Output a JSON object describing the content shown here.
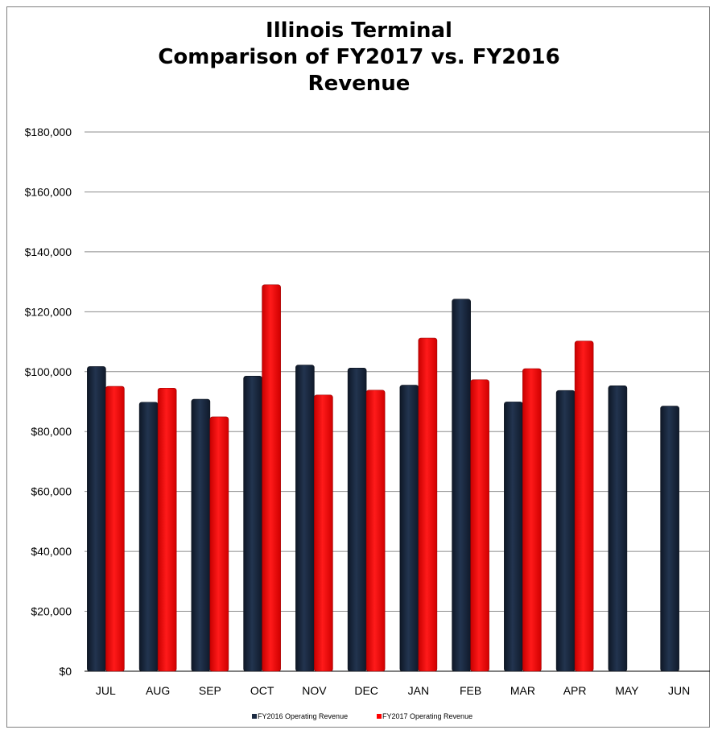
{
  "chart_data": {
    "type": "bar",
    "title_lines": [
      "Illinois Terminal",
      "Comparison of FY2017 vs. FY2016",
      "Revenue"
    ],
    "categories": [
      "JUL",
      "AUG",
      "SEP",
      "OCT",
      "NOV",
      "DEC",
      "JAN",
      "FEB",
      "MAR",
      "APR",
      "MAY",
      "JUN"
    ],
    "series": [
      {
        "name": "FY2016 Operating Revenue",
        "color": "#1b2a41",
        "values": [
          101700,
          89800,
          90800,
          98500,
          102200,
          101200,
          95500,
          124200,
          89900,
          93700,
          95300,
          88500
        ]
      },
      {
        "name": "FY2017 Operating Revenue",
        "color": "#ff0000",
        "values": [
          95100,
          94500,
          84900,
          129000,
          92200,
          93800,
          111200,
          97300,
          101000,
          110200,
          null,
          null
        ]
      }
    ],
    "ylim": [
      0,
      180000
    ],
    "ytick_labels": [
      "$0",
      "$20,000",
      "$40,000",
      "$60,000",
      "$80,000",
      "$100,000",
      "$120,000",
      "$140,000",
      "$160,000",
      "$180,000"
    ],
    "grid": true,
    "legend_position": "bottom"
  }
}
